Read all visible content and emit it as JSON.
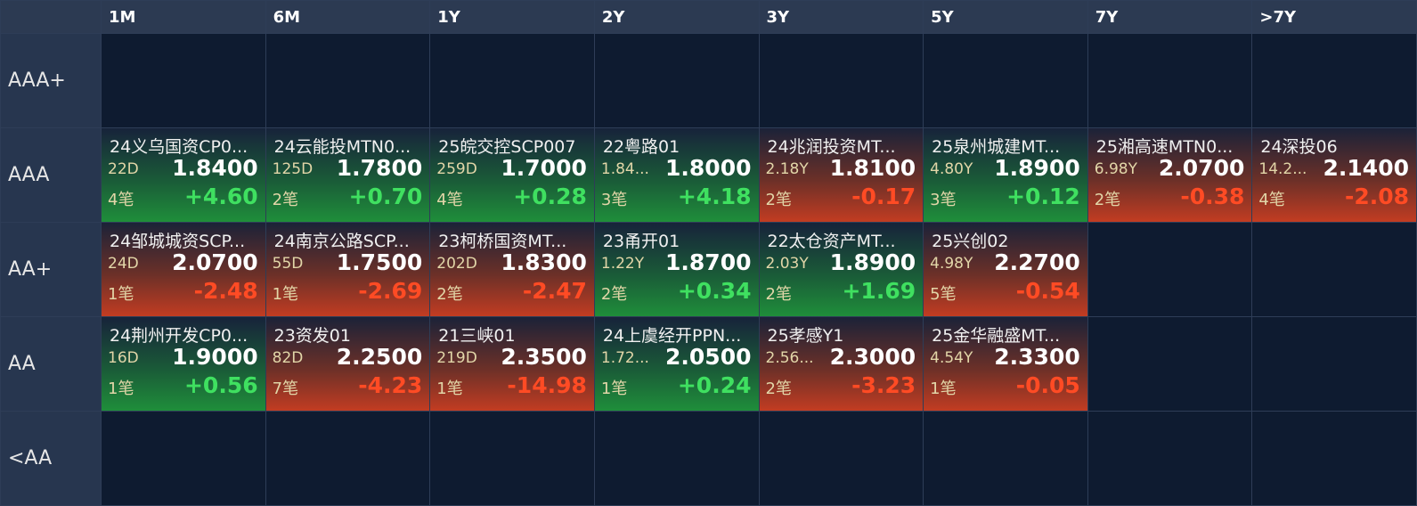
{
  "table": {
    "columns": [
      "1M",
      "6M",
      "1Y",
      "2Y",
      "3Y",
      "5Y",
      "7Y",
      ">7Y"
    ],
    "rows": [
      {
        "label": "AAA+",
        "cells": [
          null,
          null,
          null,
          null,
          null,
          null,
          null,
          null
        ]
      },
      {
        "label": "AAA",
        "cells": [
          {
            "name": "24义乌国资CP0...",
            "term": "22D",
            "yield": "1.8400",
            "count": "4笔",
            "change": "+4.60"
          },
          {
            "name": "24云能投MTN0...",
            "term": "125D",
            "yield": "1.7800",
            "count": "2笔",
            "change": "+0.70"
          },
          {
            "name": "25皖交控SCP007",
            "term": "259D",
            "yield": "1.7000",
            "count": "4笔",
            "change": "+0.28"
          },
          {
            "name": "22粤路01",
            "term": "1.84...",
            "yield": "1.8000",
            "count": "3笔",
            "change": "+4.18"
          },
          {
            "name": "24兆润投资MT...",
            "term": "2.18Y",
            "yield": "1.8100",
            "count": "2笔",
            "change": "-0.17"
          },
          {
            "name": "25泉州城建MT...",
            "term": "4.80Y",
            "yield": "1.8900",
            "count": "3笔",
            "change": "+0.12"
          },
          {
            "name": "25湘高速MTN0...",
            "term": "6.98Y",
            "yield": "2.0700",
            "count": "2笔",
            "change": "-0.38"
          },
          {
            "name": "24深投06",
            "term": "14.2...",
            "yield": "2.1400",
            "count": "4笔",
            "change": "-2.08"
          }
        ]
      },
      {
        "label": "AA+",
        "cells": [
          {
            "name": "24邹城城资SCP...",
            "term": "24D",
            "yield": "2.0700",
            "count": "1笔",
            "change": "-2.48"
          },
          {
            "name": "24南京公路SCP...",
            "term": "55D",
            "yield": "1.7500",
            "count": "1笔",
            "change": "-2.69"
          },
          {
            "name": "23柯桥国资MT...",
            "term": "202D",
            "yield": "1.8300",
            "count": "2笔",
            "change": "-2.47"
          },
          {
            "name": "23甬开01",
            "term": "1.22Y",
            "yield": "1.8700",
            "count": "2笔",
            "change": "+0.34"
          },
          {
            "name": "22太仓资产MT...",
            "term": "2.03Y",
            "yield": "1.8900",
            "count": "2笔",
            "change": "+1.69"
          },
          {
            "name": "25兴创02",
            "term": "4.98Y",
            "yield": "2.2700",
            "count": "5笔",
            "change": "-0.54"
          },
          null,
          null
        ]
      },
      {
        "label": "AA",
        "cells": [
          {
            "name": "24荆州开发CP0...",
            "term": "16D",
            "yield": "1.9000",
            "count": "1笔",
            "change": "+0.56"
          },
          {
            "name": "23资发01",
            "term": "82D",
            "yield": "2.2500",
            "count": "7笔",
            "change": "-4.23"
          },
          {
            "name": "21三峡01",
            "term": "219D",
            "yield": "2.3500",
            "count": "1笔",
            "change": "-14.98"
          },
          {
            "name": "24上虞经开PPN...",
            "term": "1.72...",
            "yield": "2.0500",
            "count": "1笔",
            "change": "+0.24"
          },
          {
            "name": "25孝感Y1",
            "term": "2.56...",
            "yield": "2.3000",
            "count": "2笔",
            "change": "-3.23"
          },
          {
            "name": "25金华融盛MT...",
            "term": "4.54Y",
            "yield": "2.3300",
            "count": "1笔",
            "change": "-0.05"
          },
          null,
          null
        ]
      },
      {
        "label": "<AA",
        "cells": [
          null,
          null,
          null,
          null,
          null,
          null,
          null,
          null
        ]
      }
    ]
  }
}
